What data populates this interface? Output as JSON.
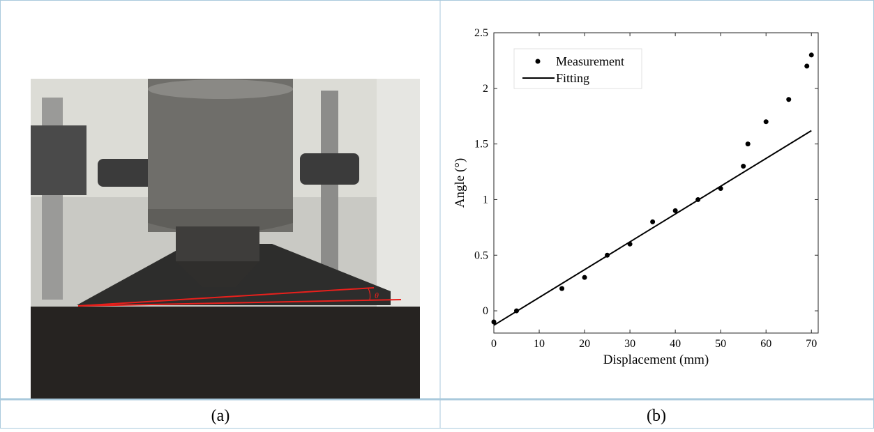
{
  "photo": {
    "annotation": "θ"
  },
  "chart_data": {
    "type": "scatter",
    "xlabel": "Displacement (mm)",
    "ylabel": "Angle (°)",
    "xlim": [
      0,
      71.5
    ],
    "ylim": [
      -0.2,
      2.5
    ],
    "xticks": [
      0,
      10,
      20,
      30,
      40,
      50,
      60,
      70
    ],
    "yticks": [
      0,
      0.5,
      1,
      1.5,
      2,
      2.5
    ],
    "legend": "top-left",
    "series": [
      {
        "name": "Measurement",
        "mode": "markers",
        "color": "#000000",
        "x": [
          0,
          5,
          15,
          20,
          25,
          30,
          35,
          40,
          45,
          50,
          55,
          56,
          60,
          65,
          69,
          70
        ],
        "values": [
          -0.1,
          0,
          0.2,
          0.3,
          0.5,
          0.6,
          0.8,
          0.9,
          1.0,
          1.1,
          1.3,
          1.5,
          1.7,
          1.9,
          2.2,
          2.3
        ]
      },
      {
        "name": "Fitting",
        "mode": "line",
        "color": "#000000",
        "x": [
          0,
          70
        ],
        "values": [
          -0.13,
          1.62
        ]
      }
    ]
  },
  "captions": [
    "(a)",
    "(b)"
  ]
}
